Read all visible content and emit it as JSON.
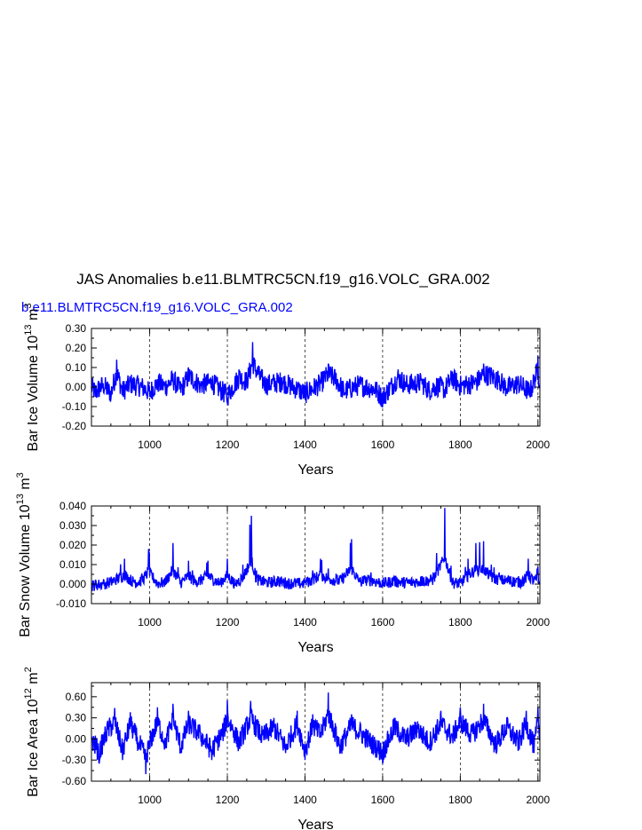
{
  "main_title": "JAS Anomalies b.e11.BLMTRC5CN.f19_g16.VOLC_GRA.002",
  "run_label": "b.e11.BLMTRC5CN.f19_g16.VOLC_GRA.002",
  "colors": {
    "series": "#0000ff",
    "run_label": "#0000ff",
    "axes": "#000000"
  },
  "chart_data": [
    {
      "type": "line",
      "xlabel": "Years",
      "ylabel_main": "Bar Ice Volume 10",
      "ylabel_exp": "13",
      "ylabel_unit": " m",
      "ylabel_unit_exp": "3",
      "xlim": [
        850,
        2005
      ],
      "ylim": [
        -0.2,
        0.3
      ],
      "xticks": [
        1000,
        1200,
        1400,
        1600,
        1800,
        2000
      ],
      "xtick_labels": [
        "1000",
        "1200",
        "1400",
        "1600",
        "1800",
        "2000"
      ],
      "yticks": [
        -0.2,
        -0.1,
        0.0,
        0.1,
        0.2,
        0.3
      ],
      "ytick_labels": [
        "-0.20",
        "-0.10",
        "0.00",
        "0.10",
        "0.20",
        "0.30"
      ],
      "ref_lines_x": [
        1000,
        1200,
        1400,
        1600,
        1800,
        2000
      ],
      "series": [
        {
          "x_start": 850,
          "x_end": 2005,
          "samples": 231,
          "x": [
            850,
            860,
            880,
            900,
            915,
            930,
            950,
            980,
            1000,
            1020,
            1040,
            1060,
            1080,
            1100,
            1130,
            1160,
            1200,
            1230,
            1250,
            1265,
            1280,
            1300,
            1340,
            1380,
            1400,
            1440,
            1460,
            1480,
            1500,
            1540,
            1580,
            1600,
            1640,
            1660,
            1700,
            1720,
            1740,
            1760,
            1780,
            1800,
            1840,
            1860,
            1880,
            1900,
            1920,
            1950,
            1980,
            1990,
            2000,
            2005
          ],
          "y": [
            0.0,
            -0.05,
            0.02,
            -0.06,
            0.14,
            -0.04,
            0.03,
            0.0,
            -0.05,
            0.04,
            0.0,
            0.07,
            -0.03,
            0.1,
            0.02,
            0.04,
            -0.08,
            0.09,
            0.05,
            0.23,
            0.11,
            0.02,
            0.05,
            -0.02,
            -0.06,
            0.03,
            0.12,
            0.07,
            -0.04,
            0.02,
            -0.02,
            -0.1,
            0.09,
            0.02,
            0.04,
            -0.03,
            0.01,
            -0.02,
            0.08,
            0.01,
            0.04,
            0.12,
            0.1,
            0.06,
            -0.01,
            0.03,
            -0.05,
            0.06,
            0.16,
            0.0
          ]
        }
      ]
    },
    {
      "type": "line",
      "xlabel": "Years",
      "ylabel_main": "Bar Snow Volume 10",
      "ylabel_exp": "13",
      "ylabel_unit": " m",
      "ylabel_unit_exp": "3",
      "xlim": [
        850,
        2005
      ],
      "ylim": [
        -0.01,
        0.04
      ],
      "xticks": [
        1000,
        1200,
        1400,
        1600,
        1800,
        2000
      ],
      "xtick_labels": [
        "1000",
        "1200",
        "1400",
        "1600",
        "1800",
        "2000"
      ],
      "yticks": [
        -0.01,
        0.0,
        0.01,
        0.02,
        0.03,
        0.04
      ],
      "ytick_labels": [
        "-0.010",
        "0.000",
        "0.010",
        "0.020",
        "0.030",
        "0.040"
      ],
      "ref_lines_x": [
        1000,
        1200,
        1400,
        1600,
        1800,
        2000
      ],
      "series": [
        {
          "x": [
            850,
            880,
            900,
            935,
            960,
            980,
            997,
            1020,
            1040,
            1060,
            1080,
            1100,
            1120,
            1150,
            1180,
            1200,
            1220,
            1240,
            1262,
            1275,
            1300,
            1330,
            1360,
            1400,
            1420,
            1440,
            1460,
            1490,
            1520,
            1540,
            1570,
            1600,
            1630,
            1660,
            1700,
            1730,
            1760,
            1780,
            1800,
            1820,
            1840,
            1860,
            1880,
            1900,
            1930,
            1960,
            1975,
            1990,
            2000,
            2005
          ],
          "y": [
            -0.002,
            0.0,
            0.003,
            0.013,
            0.002,
            0.005,
            0.018,
            0.001,
            0.003,
            0.021,
            0.002,
            0.012,
            0.002,
            0.012,
            0.001,
            0.013,
            0.0,
            0.01,
            0.035,
            0.007,
            0.002,
            0.004,
            0.001,
            0.001,
            0.007,
            0.013,
            0.008,
            0.004,
            0.023,
            0.003,
            0.006,
            0.001,
            0.004,
            0.002,
            0.004,
            0.006,
            0.039,
            0.002,
            0.001,
            0.013,
            0.021,
            0.022,
            0.01,
            0.006,
            0.004,
            0.003,
            0.013,
            0.004,
            0.009,
            0.0
          ]
        }
      ]
    },
    {
      "type": "line",
      "xlabel": "Years",
      "ylabel_main": "Bar Ice Area 10",
      "ylabel_exp": "12",
      "ylabel_unit": " m",
      "ylabel_unit_exp": "2",
      "xlim": [
        850,
        2005
      ],
      "ylim": [
        -0.6,
        0.8
      ],
      "xticks": [
        1000,
        1200,
        1400,
        1600,
        1800,
        2000
      ],
      "xtick_labels": [
        "1000",
        "1200",
        "1400",
        "1600",
        "1800",
        "2000"
      ],
      "yticks": [
        -0.6,
        -0.3,
        0.0,
        0.3,
        0.6
      ],
      "ytick_labels": [
        "-0.60",
        "-0.30",
        "0.00",
        "0.30",
        "0.60"
      ],
      "ref_lines_x": [
        1000,
        1200,
        1400,
        1600,
        1800,
        2000
      ],
      "series": [
        {
          "x": [
            850,
            870,
            890,
            910,
            930,
            950,
            970,
            990,
            1000,
            1020,
            1040,
            1060,
            1080,
            1100,
            1130,
            1160,
            1190,
            1200,
            1230,
            1260,
            1290,
            1320,
            1350,
            1380,
            1400,
            1420,
            1440,
            1460,
            1490,
            1520,
            1550,
            1580,
            1600,
            1630,
            1660,
            1690,
            1720,
            1750,
            1780,
            1800,
            1830,
            1860,
            1890,
            1920,
            1950,
            1970,
            1990,
            2000,
            2005
          ],
          "y": [
            0.0,
            -0.35,
            0.2,
            0.44,
            -0.3,
            0.38,
            -0.05,
            -0.5,
            -0.1,
            0.45,
            -0.1,
            0.5,
            -0.2,
            0.4,
            0.1,
            -0.3,
            0.2,
            0.55,
            -0.1,
            0.54,
            0.05,
            0.3,
            -0.2,
            0.4,
            -0.3,
            0.35,
            0.1,
            0.66,
            -0.2,
            0.35,
            0.1,
            -0.2,
            -0.35,
            0.3,
            0.0,
            0.25,
            -0.1,
            0.4,
            0.05,
            0.45,
            0.1,
            0.5,
            -0.15,
            0.3,
            -0.1,
            0.4,
            -0.2,
            0.45,
            0.0
          ]
        }
      ]
    }
  ]
}
